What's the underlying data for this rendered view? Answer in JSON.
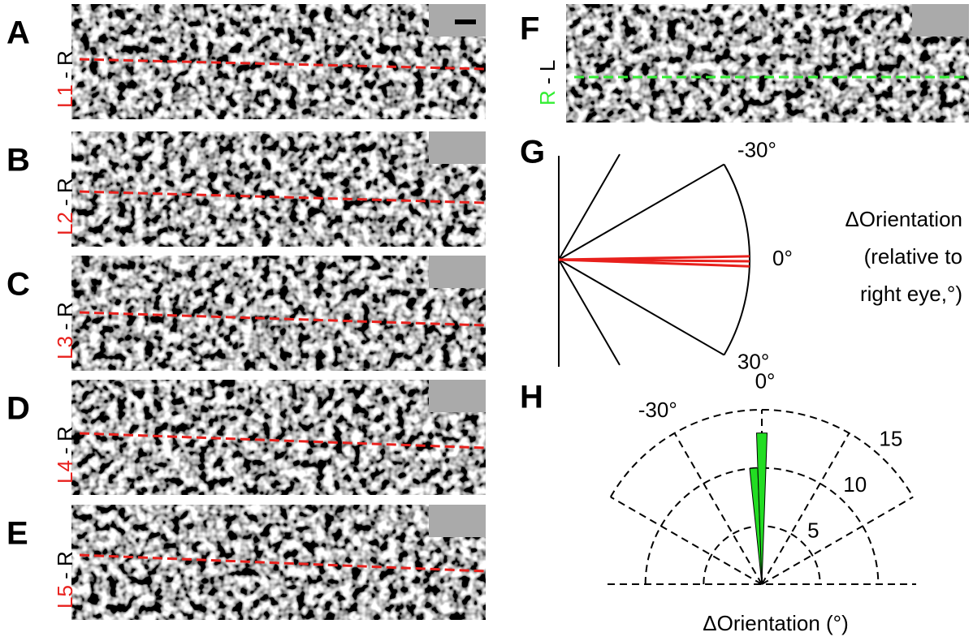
{
  "left_panels": [
    {
      "letter": "A",
      "eye": "L1",
      "rest": "- R"
    },
    {
      "letter": "B",
      "eye": "L2",
      "rest": "- R"
    },
    {
      "letter": "C",
      "eye": "L3",
      "rest": "- R"
    },
    {
      "letter": "D",
      "eye": "L4",
      "rest": "- R"
    },
    {
      "letter": "E",
      "eye": "L5",
      "rest": "- R"
    }
  ],
  "panel_f": {
    "letter": "F",
    "eye": "R",
    "rest": "- L"
  },
  "panel_g": {
    "letter": "G",
    "angle_ticks": [
      {
        "value": -30,
        "label": "-30°"
      },
      {
        "value": 0,
        "label": "0°"
      },
      {
        "value": 30,
        "label": "30°"
      }
    ],
    "differences": [
      -1,
      0.5,
      2
    ],
    "annotation": [
      "ΔOrientation",
      "(relative to",
      "right eye,°)"
    ]
  },
  "chart_data": {
    "type": "polar-histogram",
    "letter": "H",
    "bins": [
      -6,
      -2,
      2
    ],
    "counts": [
      10,
      13
    ],
    "color": "#22dd22",
    "rlim": [
      0,
      15
    ],
    "rticks": [
      5,
      10,
      15
    ],
    "angle_ticks": [
      {
        "value": -30,
        "label": "-30°"
      },
      {
        "value": 0,
        "label": "0°"
      }
    ],
    "xlabel": "ΔOrientation (°)"
  }
}
